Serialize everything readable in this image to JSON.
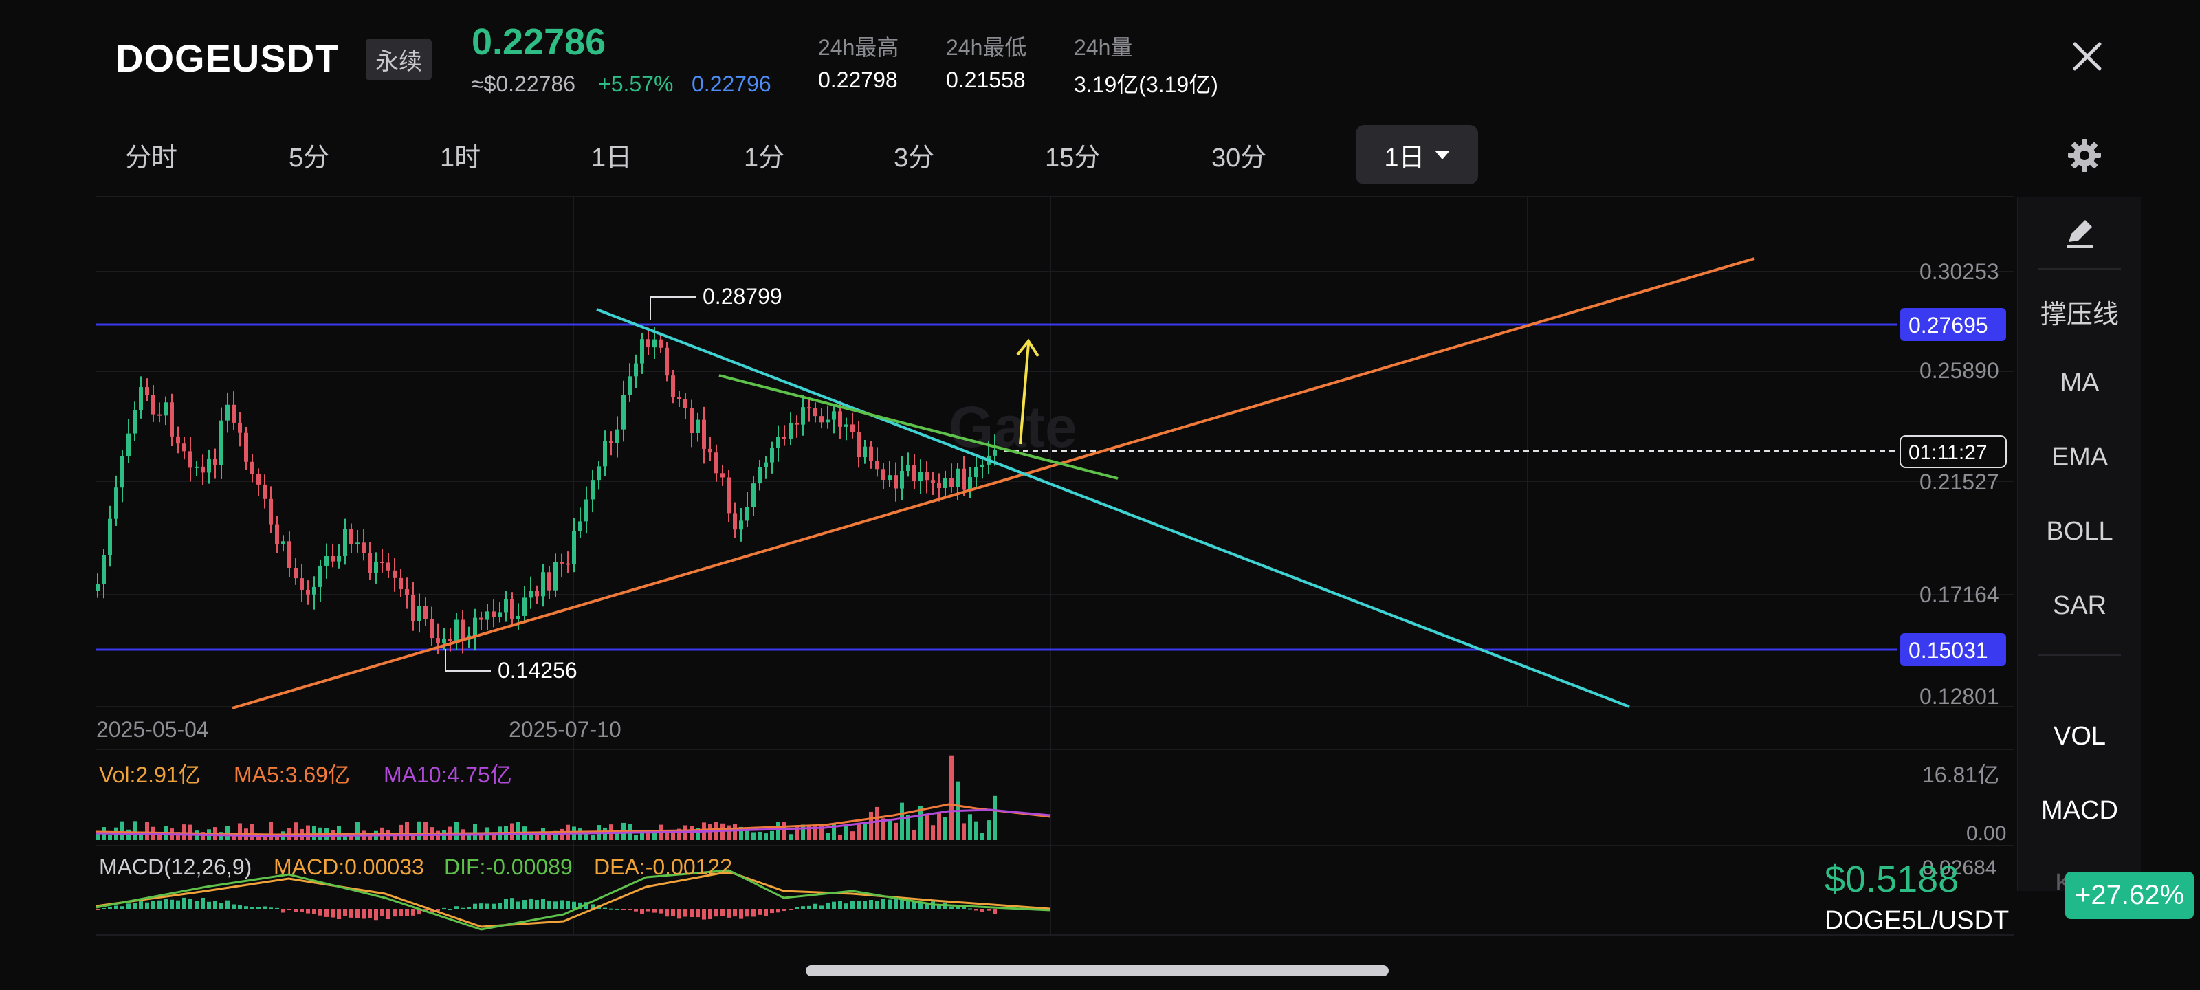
{
  "header": {
    "symbol": "DOGEUSDT",
    "badge": "永续",
    "last_price": "0.22786",
    "usd_price": "≈$0.22786",
    "change": "+5.57%",
    "mark_price": "0.22796",
    "stats": [
      {
        "label": "24h最高",
        "value": "0.22798"
      },
      {
        "label": "24h最低",
        "value": "0.21558"
      },
      {
        "label": "24h量",
        "value": "3.19亿(3.19亿)"
      }
    ]
  },
  "toolbar": {
    "timeframes": [
      "分时",
      "5分",
      "1时",
      "1日",
      "1分",
      "3分",
      "15分",
      "30分"
    ],
    "active": "1日"
  },
  "chart": {
    "y_labels": [
      "0.30253",
      "0.25890",
      "0.21527",
      "0.17164",
      "0.12801"
    ],
    "upper_line_label": "0.27695",
    "lower_line_label": "0.15031",
    "countdown": "01:11:27",
    "high_label": "0.28799",
    "low_label": "0.14256",
    "x_labels": [
      "2025-05-04",
      "2025-07-10"
    ],
    "watermark": "Gate"
  },
  "volume": {
    "vol": "Vol:2.91亿",
    "ma5": "MA5:3.69亿",
    "ma10": "MA10:4.75亿",
    "max": "16.81亿",
    "min": "0.00"
  },
  "macd": {
    "title": "MACD(12,26,9)",
    "macd": "MACD:0.00033",
    "dif": "DIF:-0.00089",
    "dea": "DEA:-0.00122",
    "max": "0.02684"
  },
  "side_panel": {
    "items": [
      "撑压线",
      "MA",
      "EMA",
      "BOLL",
      "SAR"
    ],
    "indicators": [
      "VOL",
      "MACD",
      "KDJ"
    ]
  },
  "promo": {
    "price": "$0.5188",
    "pair": "DOGE5L/USDT",
    "change": "+27.62%"
  },
  "colors": {
    "up": "#2ebd85",
    "down": "#e25563",
    "level_line": "#3a3af0",
    "trend_orange": "#f07a3a",
    "trend_cyan": "#3fd2d2",
    "trend_green": "#5ec24a",
    "arrow_yellow": "#f4e14a"
  }
}
